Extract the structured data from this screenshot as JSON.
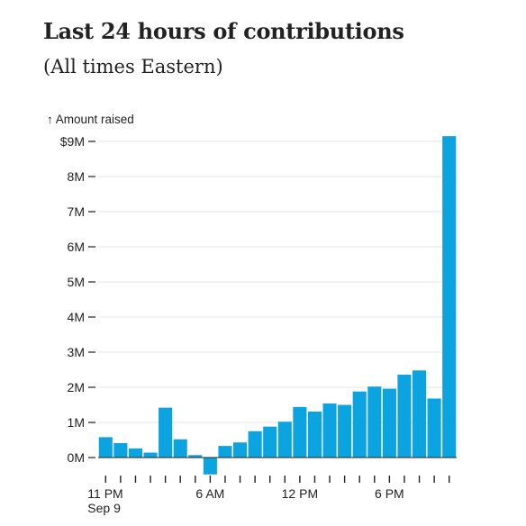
{
  "header": {
    "title": "Last 24 hours of contributions",
    "subtitle": "(All times Eastern)"
  },
  "colors": {
    "bar": "#0ba3e0",
    "grid": "#e6e6e6",
    "axis": "#222222",
    "text": "#222222"
  },
  "chart_data": {
    "type": "bar",
    "title": "Last 24 hours of contributions",
    "subtitle": "(All times Eastern)",
    "ylabel": "↑ Amount raised",
    "ylim": [
      0,
      9000000
    ],
    "y_ticks": [
      {
        "value": 0,
        "label": "0M"
      },
      {
        "value": 1000000,
        "label": "1M"
      },
      {
        "value": 2000000,
        "label": "2M"
      },
      {
        "value": 3000000,
        "label": "3M"
      },
      {
        "value": 4000000,
        "label": "4M"
      },
      {
        "value": 5000000,
        "label": "5M"
      },
      {
        "value": 6000000,
        "label": "6M"
      },
      {
        "value": 7000000,
        "label": "7M"
      },
      {
        "value": 8000000,
        "label": "8M"
      },
      {
        "value": 9000000,
        "label": "$9M"
      }
    ],
    "x_tick_labels": [
      {
        "index": 0,
        "lines": [
          "11 PM",
          "Sep 9"
        ]
      },
      {
        "index": 7,
        "lines": [
          "6 AM"
        ]
      },
      {
        "index": 13,
        "lines": [
          "12 PM"
        ]
      },
      {
        "index": 19,
        "lines": [
          "6 PM"
        ]
      }
    ],
    "grid": true,
    "values": [
      580000,
      410000,
      260000,
      140000,
      1420000,
      520000,
      70000,
      -480000,
      330000,
      430000,
      750000,
      880000,
      1020000,
      1440000,
      1310000,
      1540000,
      1500000,
      1880000,
      2020000,
      1960000,
      2360000,
      2480000,
      1680000,
      9150000
    ]
  }
}
